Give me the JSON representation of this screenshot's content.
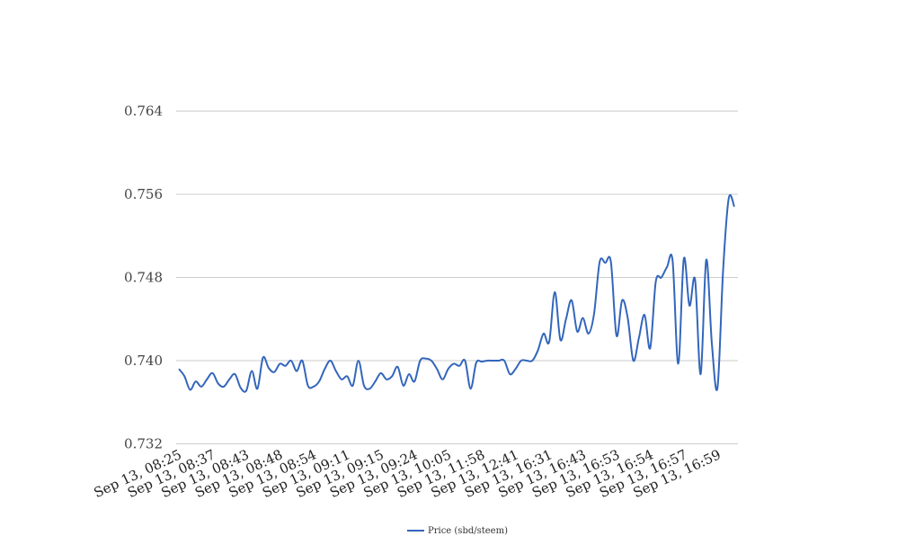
{
  "chart_data": {
    "type": "line",
    "title": "",
    "xlabel": "",
    "ylabel": "",
    "ylim": [
      0.732,
      0.764
    ],
    "yticks": [
      0.732,
      0.74,
      0.748,
      0.756,
      0.764
    ],
    "ytick_labels": [
      "0.732",
      "0.740",
      "0.748",
      "0.756",
      "0.764"
    ],
    "xtick_labels": [
      "Sep 13, 08:25",
      "Sep 13, 08:37",
      "Sep 13, 08:43",
      "Sep 13, 08:48",
      "Sep 13, 08:54",
      "Sep 13, 09:11",
      "Sep 13, 09:15",
      "Sep 13, 09:24",
      "Sep 13, 10:05",
      "Sep 13, 11:58",
      "Sep 13, 12:41",
      "Sep 13, 16:31",
      "Sep 13, 16:43",
      "Sep 13, 16:53",
      "Sep 13, 16:54",
      "Sep 13, 16:57",
      "Sep 13, 16:59"
    ],
    "grid": true,
    "legend_position": "bottom-center",
    "series": [
      {
        "name": "Price (sbd/steem)",
        "color": "#3366bb",
        "values": [
          0.7392,
          0.7385,
          0.7372,
          0.738,
          0.7375,
          0.7382,
          0.7388,
          0.7378,
          0.7375,
          0.7382,
          0.7387,
          0.7374,
          0.7371,
          0.739,
          0.7373,
          0.7403,
          0.7393,
          0.7389,
          0.7397,
          0.7395,
          0.74,
          0.739,
          0.74,
          0.7376,
          0.7375,
          0.738,
          0.7392,
          0.74,
          0.739,
          0.7382,
          0.7385,
          0.7376,
          0.74,
          0.7376,
          0.7373,
          0.738,
          0.7388,
          0.7382,
          0.7385,
          0.7394,
          0.7376,
          0.7387,
          0.738,
          0.74,
          0.7402,
          0.74,
          0.7392,
          0.7382,
          0.7392,
          0.7397,
          0.7395,
          0.74,
          0.7373,
          0.7398,
          0.7399,
          0.74,
          0.74,
          0.74,
          0.74,
          0.7387,
          0.7392,
          0.74,
          0.74,
          0.74,
          0.741,
          0.7426,
          0.7418,
          0.7466,
          0.742,
          0.744,
          0.7458,
          0.7428,
          0.7441,
          0.7426,
          0.7445,
          0.7495,
          0.7494,
          0.7495,
          0.7424,
          0.7458,
          0.7441,
          0.74,
          0.7422,
          0.7444,
          0.7412,
          0.7476,
          0.748,
          0.749,
          0.7496,
          0.7397,
          0.7498,
          0.7453,
          0.7478,
          0.7387,
          0.7497,
          0.7416,
          0.7374,
          0.7487,
          0.7556,
          0.7548
        ]
      }
    ]
  }
}
